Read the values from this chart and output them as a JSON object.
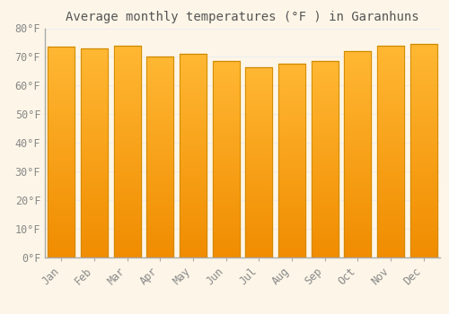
{
  "title": "Average monthly temperatures (°F ) in Garanhuns",
  "months": [
    "Jan",
    "Feb",
    "Mar",
    "Apr",
    "May",
    "Jun",
    "Jul",
    "Aug",
    "Sep",
    "Oct",
    "Nov",
    "Dec"
  ],
  "values": [
    73.5,
    73.0,
    74.0,
    70.0,
    71.0,
    68.5,
    66.5,
    67.5,
    68.5,
    72.0,
    74.0,
    74.5
  ],
  "bar_color_top": "#FFB733",
  "bar_color_bottom": "#F08C00",
  "bar_edge_color": "#CC8800",
  "background_color": "#FDF6E8",
  "grid_color": "#EEEEEE",
  "axis_color": "#AAAAAA",
  "text_color": "#888888",
  "title_color": "#555555",
  "ylim": [
    0,
    80
  ],
  "yticks": [
    0,
    10,
    20,
    30,
    40,
    50,
    60,
    70,
    80
  ],
  "ylabel_suffix": "°F",
  "title_fontsize": 10,
  "tick_fontsize": 8.5,
  "bar_width": 0.82
}
